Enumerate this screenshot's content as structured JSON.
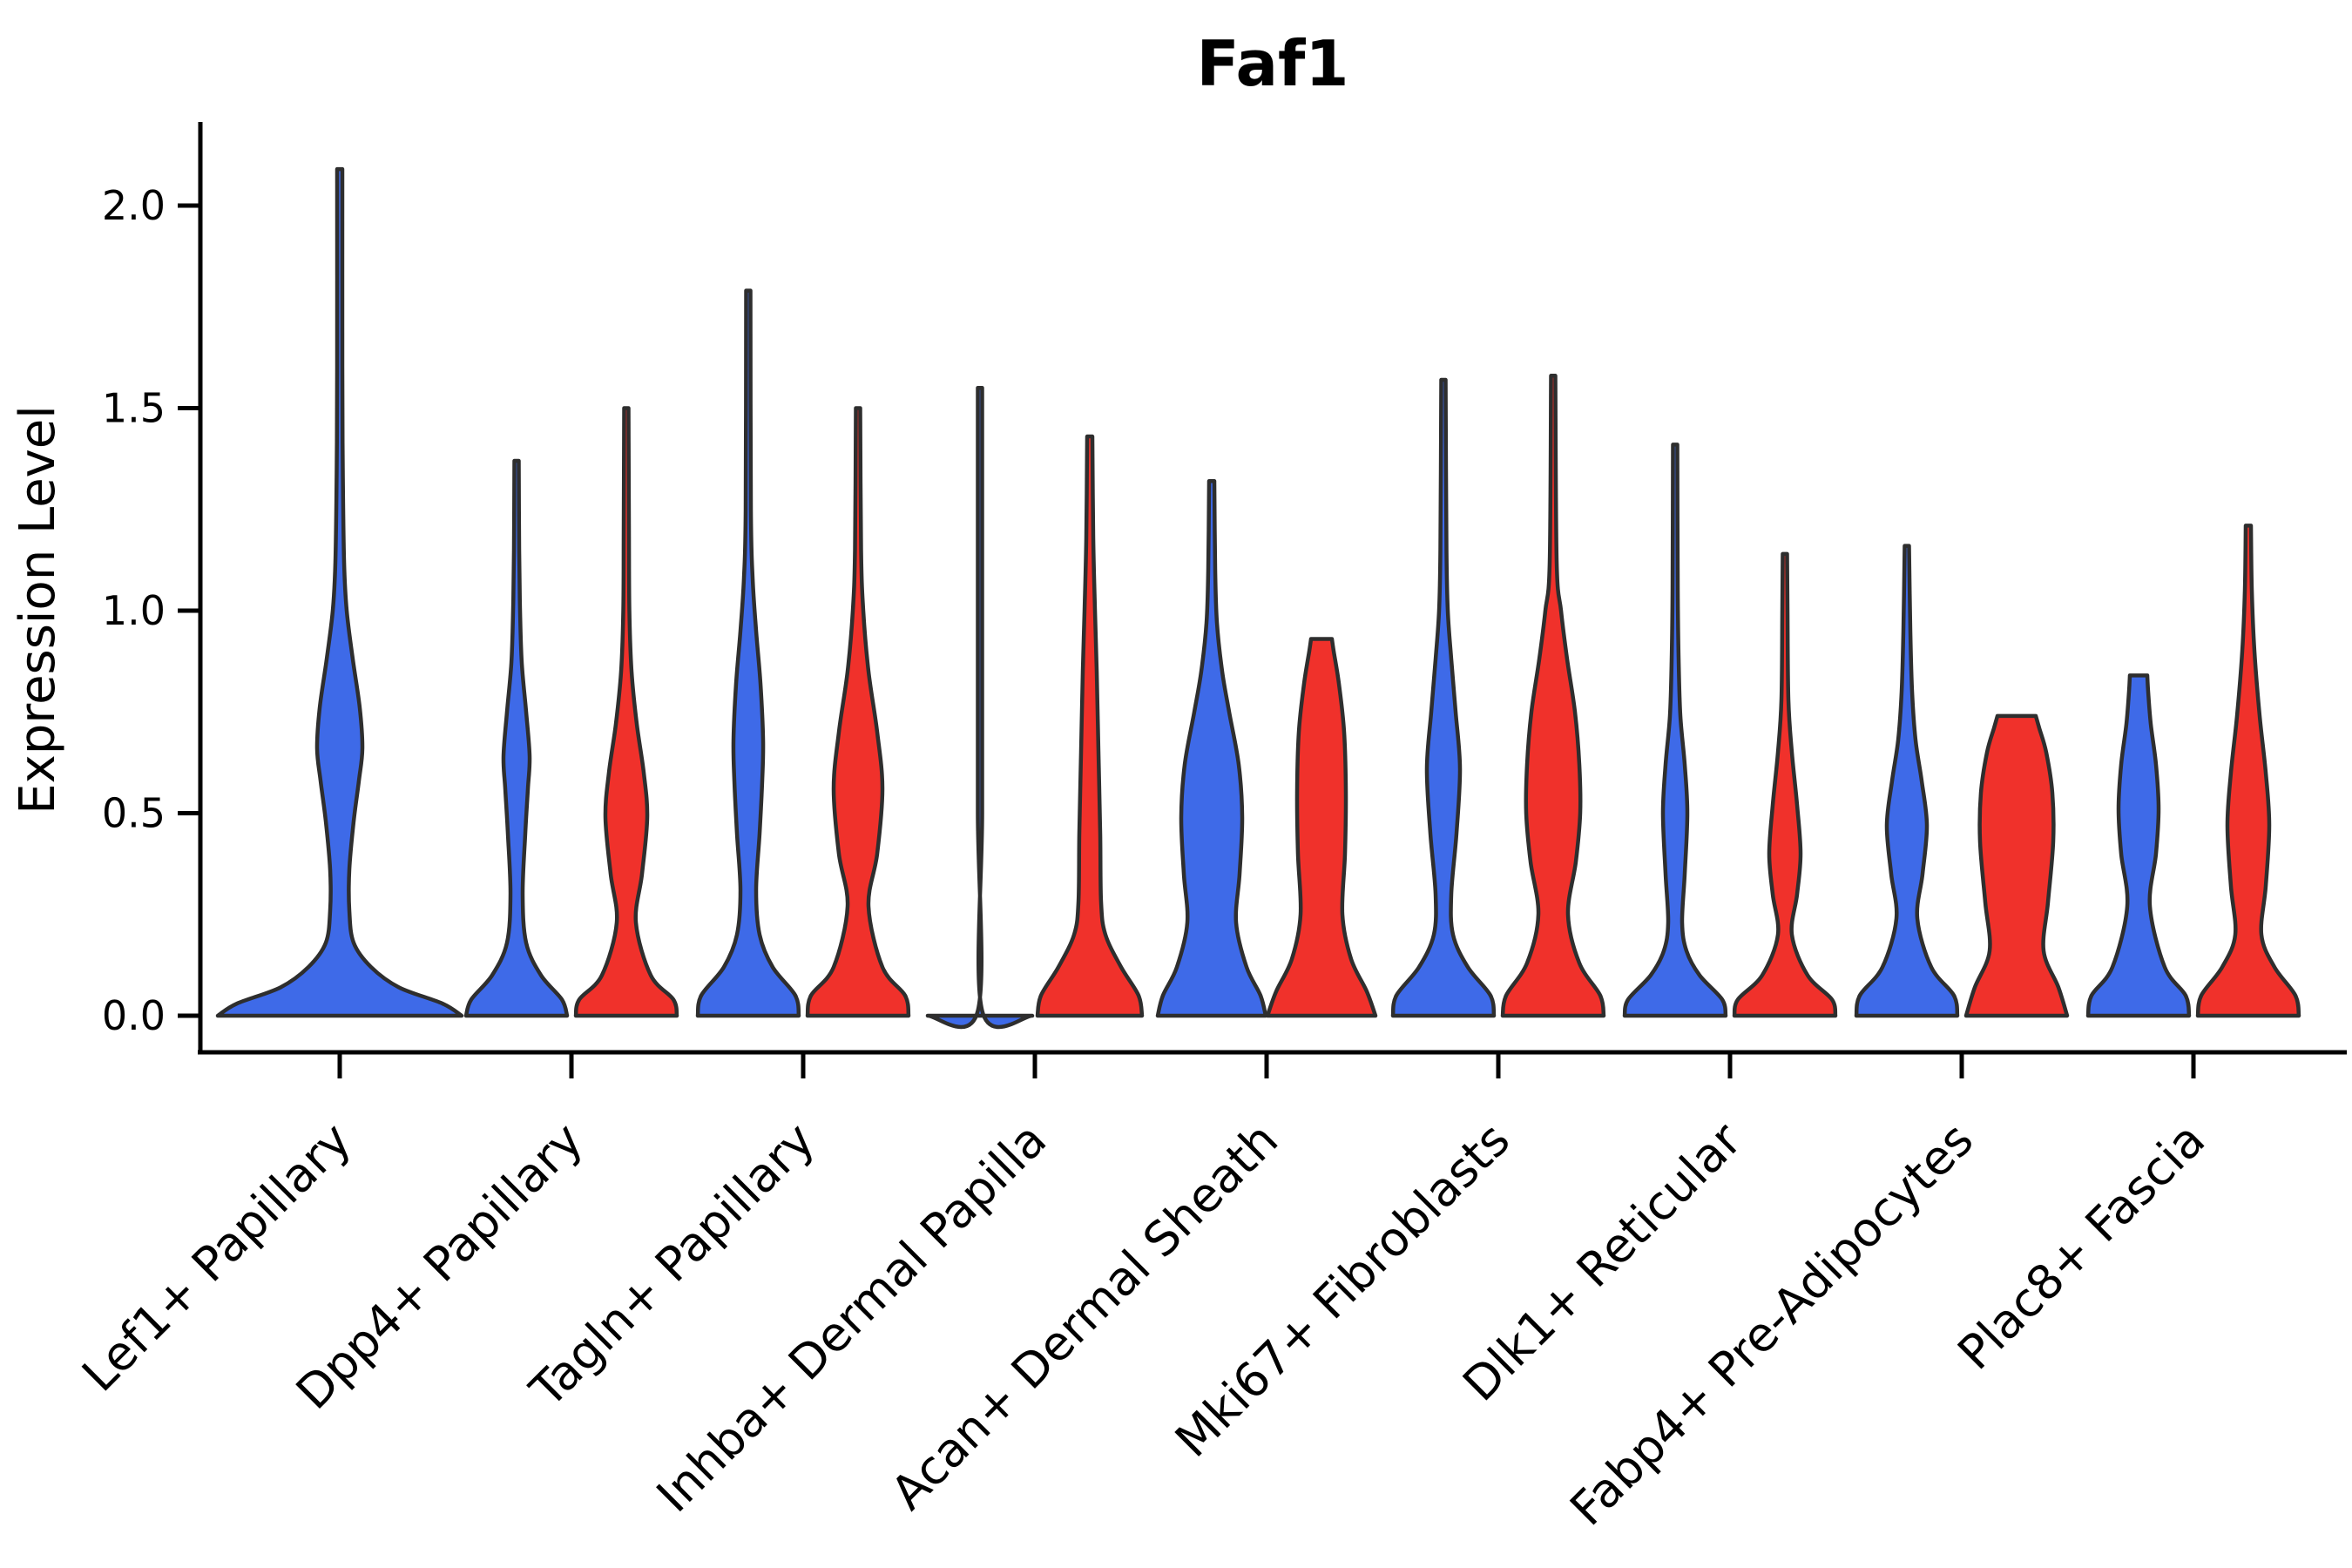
{
  "figure": {
    "title": "Faf1",
    "y_axis": {
      "label": "Expression Level",
      "tick_labels": [
        "0.0",
        "0.5",
        "1.0",
        "1.5",
        "2.0"
      ],
      "tick_values": [
        0.0,
        0.5,
        1.0,
        1.5,
        2.0
      ]
    },
    "x_axis": {
      "categories": [
        "Lef1+ Papillary",
        "Dpp4+ Papillary",
        "Tagln+ Papillary",
        "Inhba+ Dermal Papilla",
        "Acan+ Dermal Sheath",
        "Mki67+ Fibroblasts",
        "Dlk1+ Reticular",
        "Fabp4+ Pre-Adipocytes",
        "Plac8+ Fascia"
      ]
    }
  },
  "chart_data": {
    "type": "violin",
    "title": "Faf1",
    "xlabel": "",
    "ylabel": "Expression Level",
    "ylim": [
      -0.09,
      2.25
    ],
    "yticks": [
      0.0,
      0.5,
      1.0,
      1.5,
      2.0
    ],
    "grid": false,
    "legend": "none",
    "colors": {
      "blue": "#3E6AE8",
      "red": "#F0312B",
      "outline": "#2E2E2E"
    },
    "categories": [
      "Lef1+ Papillary",
      "Dpp4+ Papillary",
      "Tagln+ Papillary",
      "Inhba+ Dermal Papilla",
      "Acan+ Dermal Sheath",
      "Mki67+ Fibroblasts",
      "Dlk1+ Reticular",
      "Fabp4+ Pre-Adipocytes",
      "Plac8+ Fascia"
    ],
    "groups": [
      {
        "category": "Lef1+ Papillary",
        "violins": [
          {
            "color": "blue",
            "max_expression": 2.09,
            "cap": "spike",
            "profile": [
              [
                0,
                140
              ],
              [
                0.03,
                118
              ],
              [
                0.07,
                68
              ],
              [
                0.12,
                36
              ],
              [
                0.18,
                16
              ],
              [
                0.26,
                11
              ],
              [
                0.36,
                11
              ],
              [
                0.48,
                16
              ],
              [
                0.58,
                22
              ],
              [
                0.66,
                26
              ],
              [
                0.76,
                23
              ],
              [
                0.88,
                15
              ],
              [
                1.0,
                8
              ],
              [
                1.12,
                5
              ],
              [
                1.35,
                3.5
              ],
              [
                1.6,
                3
              ],
              [
                2.09,
                3
              ]
            ]
          }
        ]
      },
      {
        "category": "Dpp4+ Papillary",
        "violins": [
          {
            "color": "blue",
            "max_expression": 1.37,
            "cap": "spike",
            "profile": [
              [
                0,
                58
              ],
              [
                0.04,
                52
              ],
              [
                0.1,
                28
              ],
              [
                0.18,
                11
              ],
              [
                0.3,
                7
              ],
              [
                0.45,
                10
              ],
              [
                0.56,
                13
              ],
              [
                0.64,
                15
              ],
              [
                0.75,
                11
              ],
              [
                0.87,
                6
              ],
              [
                1.0,
                4
              ],
              [
                1.15,
                3
              ],
              [
                1.37,
                2.5
              ]
            ]
          },
          {
            "color": "red",
            "max_expression": 1.5,
            "cap": "spike",
            "profile": [
              [
                0,
                58
              ],
              [
                0.04,
                54
              ],
              [
                0.1,
                28
              ],
              [
                0.23,
                11
              ],
              [
                0.35,
                18
              ],
              [
                0.49,
                24
              ],
              [
                0.6,
                20
              ],
              [
                0.72,
                12
              ],
              [
                0.85,
                6
              ],
              [
                1.0,
                3.5
              ],
              [
                1.2,
                3
              ],
              [
                1.5,
                2.5
              ]
            ]
          }
        ]
      },
      {
        "category": "Tagln+ Papillary",
        "violins": [
          {
            "color": "blue",
            "max_expression": 1.79,
            "cap": "spike",
            "profile": [
              [
                0,
                58
              ],
              [
                0.05,
                54
              ],
              [
                0.12,
                28
              ],
              [
                0.2,
                13
              ],
              [
                0.31,
                9
              ],
              [
                0.45,
                13
              ],
              [
                0.58,
                16
              ],
              [
                0.68,
                17
              ],
              [
                0.82,
                14
              ],
              [
                0.95,
                9
              ],
              [
                1.08,
                5
              ],
              [
                1.25,
                3
              ],
              [
                1.79,
                2.5
              ]
            ]
          },
          {
            "color": "red",
            "max_expression": 1.5,
            "cap": "spike",
            "profile": [
              [
                0,
                58
              ],
              [
                0.05,
                54
              ],
              [
                0.12,
                28
              ],
              [
                0.27,
                12
              ],
              [
                0.4,
                22
              ],
              [
                0.56,
                28
              ],
              [
                0.7,
                22
              ],
              [
                0.85,
                12
              ],
              [
                1.0,
                6
              ],
              [
                1.15,
                3.5
              ],
              [
                1.5,
                2.5
              ]
            ]
          }
        ]
      },
      {
        "category": "Inhba+ Dermal Papilla",
        "violins": [
          {
            "color": "blue",
            "max_expression": 1.55,
            "cap": "collapsed",
            "profile": [
              [
                0,
                60
              ],
              [
                0.012,
                2.5
              ],
              [
                0.5,
                2.5
              ],
              [
                1.0,
                2.5
              ],
              [
                1.55,
                2.5
              ]
            ]
          },
          {
            "color": "red",
            "max_expression": 1.43,
            "cap": "spike",
            "profile": [
              [
                0,
                60
              ],
              [
                0.05,
                56
              ],
              [
                0.12,
                36
              ],
              [
                0.2,
                18
              ],
              [
                0.28,
                13
              ],
              [
                0.45,
                12
              ],
              [
                0.65,
                10
              ],
              [
                0.85,
                8
              ],
              [
                1.0,
                6
              ],
              [
                1.18,
                4
              ],
              [
                1.43,
                3
              ]
            ]
          }
        ]
      },
      {
        "category": "Acan+ Dermal Sheath",
        "violins": [
          {
            "color": "blue",
            "max_expression": 1.32,
            "cap": "spike",
            "profile": [
              [
                0,
                62
              ],
              [
                0.05,
                56
              ],
              [
                0.12,
                40
              ],
              [
                0.23,
                28
              ],
              [
                0.35,
                32
              ],
              [
                0.49,
                35
              ],
              [
                0.62,
                31
              ],
              [
                0.75,
                20
              ],
              [
                0.85,
                12
              ],
              [
                0.97,
                6
              ],
              [
                1.1,
                4
              ],
              [
                1.32,
                3
              ]
            ]
          },
          {
            "color": "red",
            "max_expression": 0.93,
            "cap": "flat",
            "profile": [
              [
                0,
                62
              ],
              [
                0.06,
                52
              ],
              [
                0.14,
                34
              ],
              [
                0.25,
                24
              ],
              [
                0.4,
                27
              ],
              [
                0.55,
                28
              ],
              [
                0.7,
                26
              ],
              [
                0.82,
                20
              ],
              [
                0.9,
                14
              ],
              [
                0.93,
                12
              ]
            ]
          }
        ]
      },
      {
        "category": "Mki67+ Fibroblasts",
        "violins": [
          {
            "color": "blue",
            "max_expression": 1.57,
            "cap": "spike",
            "profile": [
              [
                0,
                58
              ],
              [
                0.05,
                54
              ],
              [
                0.12,
                28
              ],
              [
                0.2,
                11
              ],
              [
                0.3,
                9
              ],
              [
                0.45,
                15
              ],
              [
                0.61,
                19
              ],
              [
                0.75,
                14
              ],
              [
                0.88,
                9
              ],
              [
                1.0,
                5
              ],
              [
                1.15,
                3.5
              ],
              [
                1.57,
                2.5
              ]
            ]
          },
          {
            "color": "red",
            "max_expression": 1.58,
            "cap": "spike",
            "profile": [
              [
                0,
                58
              ],
              [
                0.05,
                54
              ],
              [
                0.13,
                30
              ],
              [
                0.25,
                17
              ],
              [
                0.38,
                26
              ],
              [
                0.5,
                31
              ],
              [
                0.62,
                30
              ],
              [
                0.75,
                25
              ],
              [
                0.88,
                16
              ],
              [
                1.0,
                9
              ],
              [
                1.12,
                4
              ],
              [
                1.58,
                2.5
              ]
            ]
          }
        ]
      },
      {
        "category": "Dlk1+ Reticular",
        "violins": [
          {
            "color": "blue",
            "max_expression": 1.41,
            "cap": "spike",
            "profile": [
              [
                0,
                58
              ],
              [
                0.04,
                54
              ],
              [
                0.1,
                28
              ],
              [
                0.16,
                13
              ],
              [
                0.23,
                8
              ],
              [
                0.35,
                11
              ],
              [
                0.5,
                14
              ],
              [
                0.62,
                11
              ],
              [
                0.74,
                6
              ],
              [
                0.88,
                4
              ],
              [
                1.05,
                3
              ],
              [
                1.41,
                2.5
              ]
            ]
          },
          {
            "color": "red",
            "max_expression": 1.14,
            "cap": "spike",
            "profile": [
              [
                0,
                58
              ],
              [
                0.04,
                54
              ],
              [
                0.1,
                26
              ],
              [
                0.2,
                8
              ],
              [
                0.3,
                14
              ],
              [
                0.4,
                18
              ],
              [
                0.52,
                14
              ],
              [
                0.65,
                8
              ],
              [
                0.78,
                4
              ],
              [
                1.0,
                3
              ],
              [
                1.14,
                2.5
              ]
            ]
          }
        ]
      },
      {
        "category": "Fabp4+ Pre-Adipocytes",
        "violins": [
          {
            "color": "blue",
            "max_expression": 1.16,
            "cap": "spike",
            "profile": [
              [
                0,
                58
              ],
              [
                0.05,
                54
              ],
              [
                0.12,
                28
              ],
              [
                0.24,
                12
              ],
              [
                0.35,
                18
              ],
              [
                0.47,
                23
              ],
              [
                0.58,
                17
              ],
              [
                0.68,
                10
              ],
              [
                0.8,
                6
              ],
              [
                0.95,
                4
              ],
              [
                1.16,
                2.5
              ]
            ]
          },
          {
            "color": "red",
            "max_expression": 0.74,
            "cap": "flat",
            "profile": [
              [
                0,
                58
              ],
              [
                0.07,
                48
              ],
              [
                0.16,
                31
              ],
              [
                0.28,
                36
              ],
              [
                0.43,
                42
              ],
              [
                0.55,
                41
              ],
              [
                0.65,
                34
              ],
              [
                0.71,
                26
              ],
              [
                0.74,
                22
              ]
            ]
          }
        ]
      },
      {
        "category": "Plac8+ Fascia",
        "violins": [
          {
            "color": "blue",
            "max_expression": 0.84,
            "cap": "flat",
            "profile": [
              [
                0,
                58
              ],
              [
                0.05,
                54
              ],
              [
                0.12,
                30
              ],
              [
                0.27,
                13
              ],
              [
                0.4,
                20
              ],
              [
                0.51,
                23
              ],
              [
                0.62,
                20
              ],
              [
                0.72,
                14
              ],
              [
                0.8,
                11
              ],
              [
                0.84,
                10
              ]
            ]
          },
          {
            "color": "red",
            "max_expression": 1.21,
            "cap": "spike",
            "profile": [
              [
                0,
                58
              ],
              [
                0.05,
                54
              ],
              [
                0.12,
                30
              ],
              [
                0.2,
                15
              ],
              [
                0.32,
                20
              ],
              [
                0.47,
                24
              ],
              [
                0.6,
                20
              ],
              [
                0.74,
                13
              ],
              [
                0.9,
                7
              ],
              [
                1.05,
                4
              ],
              [
                1.21,
                3
              ]
            ]
          }
        ]
      }
    ]
  }
}
